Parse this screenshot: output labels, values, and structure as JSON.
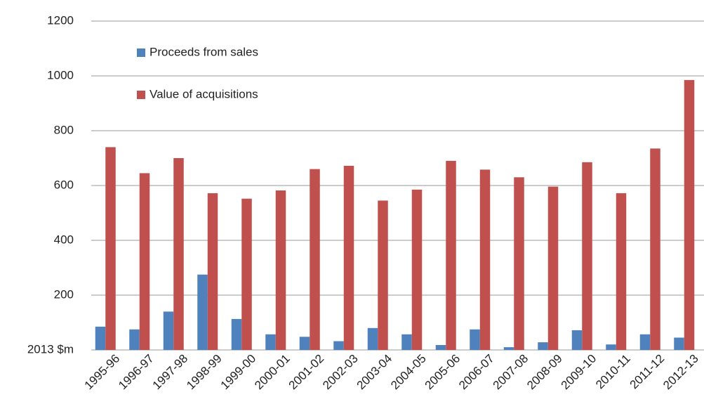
{
  "chart_data": {
    "type": "bar",
    "categories": [
      "1995-96",
      "1996-97",
      "1997-98",
      "1998-99",
      "1999-00",
      "2000-01",
      "2001-02",
      "2002-03",
      "2003-04",
      "2004-05",
      "2005-06",
      "2006-07",
      "2007-08",
      "2008-09",
      "2009-10",
      "2010-11",
      "2011-12",
      "2012-13"
    ],
    "series": [
      {
        "name": "Proceeds from sales",
        "color": "#4f81bd",
        "values": [
          85,
          75,
          140,
          275,
          113,
          57,
          48,
          32,
          80,
          57,
          18,
          75,
          10,
          28,
          72,
          20,
          57,
          45
        ]
      },
      {
        "name": "Value of acquisitions",
        "color": "#c0504d",
        "values": [
          740,
          645,
          700,
          572,
          552,
          582,
          660,
          672,
          545,
          585,
          690,
          658,
          630,
          596,
          685,
          572,
          735,
          985
        ]
      }
    ],
    "ylim": [
      0,
      1200
    ],
    "yticks": [
      {
        "value": 0,
        "label": "2013 $m"
      },
      200,
      400,
      600,
      800,
      1000,
      1200
    ],
    "grid": true,
    "legend": "upper left"
  }
}
